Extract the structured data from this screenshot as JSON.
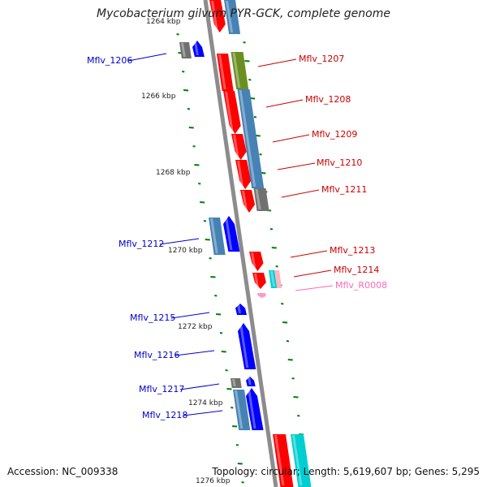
{
  "title": "Mycobacterium gilvum PYR-GCK, complete genome",
  "footer": {
    "accession": "Accession: NC_009338",
    "summary": "Topology: circular; Length: 5,619,607 bp; Genes: 5,295"
  },
  "colors": {
    "red_gene": "#ff0000",
    "blue_gene": "#0000ff",
    "steelblue_gene": "#4682b4",
    "olive_gene": "#6b8e23",
    "gray_gene": "#707070",
    "cyan_gene": "#00ced1",
    "pink_gene": "#ffb6c1",
    "backbone": "#8c8c8c",
    "tick": "#008000",
    "label_forward": "#cc0000",
    "label_reverse": "#0000cc",
    "label_rna": "#ff69b4"
  },
  "scale_labels": [
    "1264 kbp",
    "1266 kbp",
    "1268 kbp",
    "1270 kbp",
    "1272 kbp",
    "1274 kbp",
    "1276 kbp"
  ],
  "gene_labels": [
    {
      "text": "Mflv_1206",
      "side": "left",
      "color": "#0000cc"
    },
    {
      "text": "Mflv_1207",
      "side": "right",
      "color": "#cc0000"
    },
    {
      "text": "Mflv_1208",
      "side": "right",
      "color": "#cc0000"
    },
    {
      "text": "Mflv_1209",
      "side": "right",
      "color": "#cc0000"
    },
    {
      "text": "Mflv_1210",
      "side": "right",
      "color": "#cc0000"
    },
    {
      "text": "Mflv_1211",
      "side": "right",
      "color": "#cc0000"
    },
    {
      "text": "Mflv_1212",
      "side": "left",
      "color": "#0000cc"
    },
    {
      "text": "Mflv_1213",
      "side": "right",
      "color": "#cc0000"
    },
    {
      "text": "Mflv_1214",
      "side": "right",
      "color": "#cc0000"
    },
    {
      "text": "Mflv_R0008",
      "side": "right",
      "color": "#ff69b4"
    },
    {
      "text": "Mflv_1215",
      "side": "left",
      "color": "#0000cc"
    },
    {
      "text": "Mflv_1216",
      "side": "left",
      "color": "#0000cc"
    },
    {
      "text": "Mflv_1217",
      "side": "left",
      "color": "#0000cc"
    },
    {
      "text": "Mflv_1218",
      "side": "left",
      "color": "#0000cc"
    }
  ]
}
